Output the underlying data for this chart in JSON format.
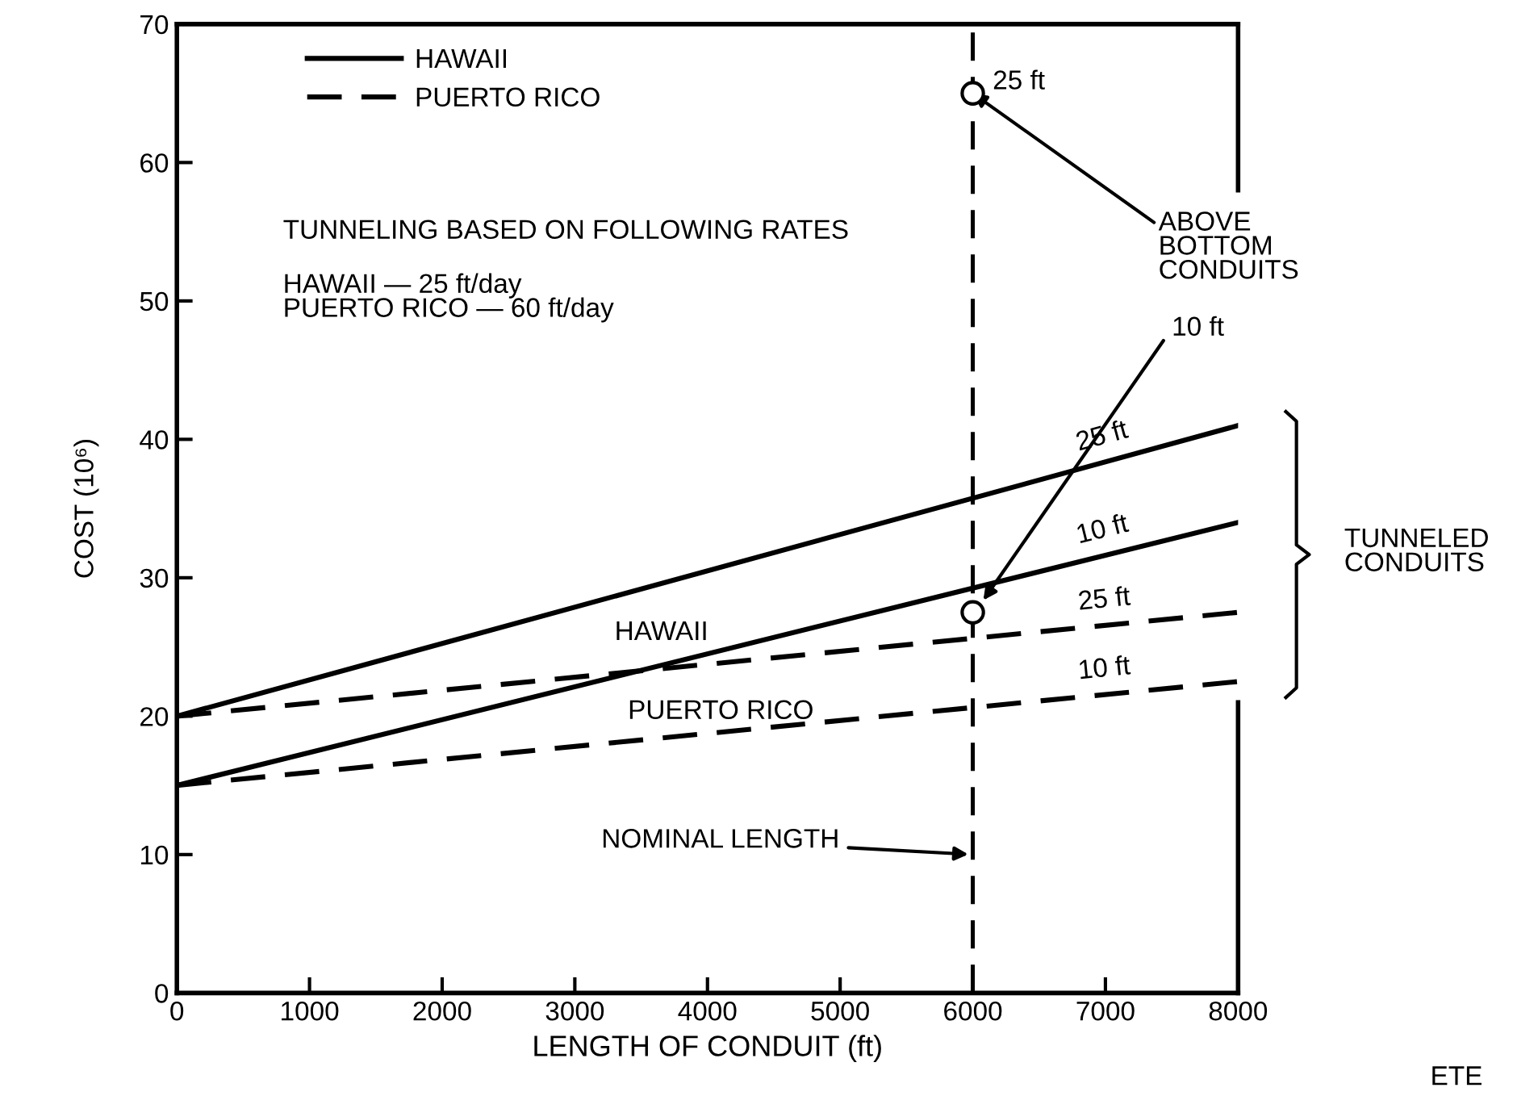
{
  "chart_data": {
    "type": "line",
    "xlabel": "LENGTH OF CONDUIT (ft)",
    "ylabel": "COST (10⁶)",
    "xlim": [
      0,
      8000
    ],
    "xticks": [
      0,
      1000,
      2000,
      3000,
      4000,
      5000,
      6000,
      7000,
      8000
    ],
    "ylim": [
      0,
      70
    ],
    "yticks": [
      0,
      10,
      20,
      30,
      40,
      50,
      60,
      70
    ],
    "grid": false,
    "legend": "top left",
    "marker": "none",
    "series": [
      {
        "name": "HAWAII",
        "color": "#000000",
        "line_style": "solid",
        "x": [
          0,
          8000
        ],
        "values": [
          20,
          41
        ]
      },
      {
        "color": "#000000",
        "line_style": "solid",
        "x": [
          0,
          8000
        ],
        "values": [
          15,
          34
        ]
      },
      {
        "name": "PUERTO RICO",
        "color": "#000000",
        "line_style": "dashed",
        "x": [
          0,
          8000
        ],
        "values": [
          20,
          27.5
        ]
      },
      {
        "color": "#000000",
        "line_style": "dashed",
        "x": [
          0,
          8000
        ],
        "values": [
          15,
          22.5
        ]
      },
      {
        "type": "scatter",
        "marker": "circle",
        "color": "#000000",
        "x": [
          6000,
          6000
        ],
        "values": [
          65,
          27.5
        ]
      }
    ],
    "ref_lines": [
      {
        "axis": "x",
        "value": 6000,
        "label": "NOMINAL LENGTH",
        "line_style": "dashed",
        "color": "#000000"
      }
    ],
    "annotations": [
      "25 ft",
      {
        "text": "ABOVE BOTTOM CONDUITS",
        "x": 6000,
        "y": 65
      },
      "10 ft",
      "TUNNELING BASED ON FOLLOWING RATES",
      "HAWAII — 25 ft/day\nPUERTO RICO — 60 ft/day",
      "HAWAII",
      "PUERTO RICO",
      "25 ft",
      "10 ft",
      "25 ft",
      "10 ft",
      "TUNNELED CONDUITS",
      "ETE"
    ]
  }
}
